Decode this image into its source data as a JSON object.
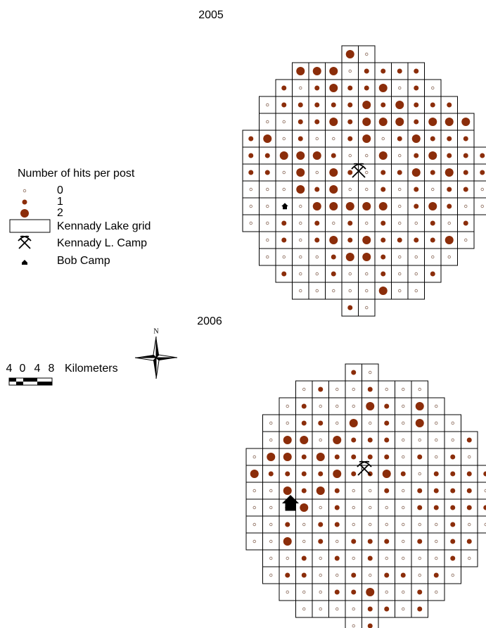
{
  "maps": [
    {
      "title": "2005",
      "rows": [
        [
          2,
          0
        ],
        [
          2,
          2,
          2,
          0,
          1,
          1,
          1,
          1
        ],
        [
          1,
          0,
          1,
          2,
          1,
          1,
          2,
          0,
          1,
          0
        ],
        [
          0,
          1,
          1,
          1,
          1,
          1,
          2,
          1,
          2,
          1,
          1,
          1
        ],
        [
          0,
          0,
          1,
          1,
          2,
          1,
          2,
          2,
          2,
          1,
          2,
          2,
          2
        ],
        [
          1,
          2,
          0,
          1,
          0,
          0,
          1,
          2,
          0,
          1,
          2,
          1,
          1,
          1
        ],
        [
          1,
          1,
          2,
          2,
          2,
          1,
          0,
          0,
          2,
          0,
          1,
          2,
          1,
          1,
          1
        ],
        [
          1,
          1,
          0,
          2,
          0,
          2,
          1,
          0,
          1,
          1,
          2,
          1,
          2,
          1,
          1
        ],
        [
          0,
          0,
          0,
          2,
          1,
          2,
          0,
          0,
          1,
          0,
          1,
          0,
          1,
          1,
          0
        ],
        [
          0,
          0,
          0,
          0,
          2,
          2,
          2,
          2,
          2,
          0,
          1,
          2,
          1,
          0,
          0
        ],
        [
          0,
          0,
          1,
          0,
          1,
          0,
          1,
          0,
          1,
          0,
          0,
          1,
          0,
          1
        ],
        [
          0,
          1,
          0,
          1,
          2,
          1,
          2,
          1,
          1,
          1,
          1,
          2,
          0
        ],
        [
          0,
          0,
          0,
          0,
          1,
          2,
          2,
          1,
          0,
          0,
          0,
          0
        ],
        [
          1,
          0,
          0,
          1,
          0,
          0,
          1,
          0,
          0,
          1
        ],
        [
          0,
          0,
          0,
          0,
          0,
          2,
          0,
          0
        ],
        [
          1,
          0
        ]
      ]
    },
    {
      "title": "2006",
      "rows": [
        [
          1,
          0
        ],
        [
          0,
          1,
          0,
          0,
          1,
          0,
          0,
          0
        ],
        [
          0,
          1,
          0,
          0,
          0,
          2,
          1,
          0,
          2,
          0
        ],
        [
          0,
          0,
          1,
          1,
          0,
          2,
          0,
          1,
          0,
          2,
          0,
          0
        ],
        [
          0,
          2,
          2,
          0,
          2,
          1,
          1,
          1,
          0,
          0,
          0,
          0,
          1
        ],
        [
          0,
          2,
          2,
          1,
          2,
          1,
          1,
          1,
          1,
          0,
          1,
          0,
          1,
          0
        ],
        [
          2,
          1,
          1,
          1,
          1,
          2,
          1,
          1,
          2,
          1,
          0,
          1,
          1,
          1,
          1
        ],
        [
          0,
          0,
          2,
          1,
          2,
          1,
          0,
          0,
          1,
          0,
          1,
          1,
          1,
          1,
          0
        ],
        [
          0,
          0,
          1,
          2,
          0,
          1,
          0,
          0,
          0,
          0,
          1,
          1,
          1,
          1,
          1
        ],
        [
          0,
          0,
          1,
          0,
          1,
          1,
          0,
          0,
          0,
          0,
          0,
          0,
          1,
          0,
          0
        ],
        [
          0,
          0,
          2,
          0,
          1,
          0,
          1,
          1,
          1,
          0,
          1,
          0,
          1,
          1
        ],
        [
          0,
          0,
          1,
          0,
          1,
          0,
          1,
          0,
          0,
          0,
          0,
          1,
          0
        ],
        [
          0,
          1,
          1,
          0,
          0,
          1,
          0,
          1,
          1,
          0,
          1,
          0
        ],
        [
          0,
          0,
          0,
          1,
          1,
          2,
          0,
          0,
          1,
          0
        ],
        [
          0,
          0,
          0,
          0,
          1,
          1,
          0,
          1
        ],
        [
          0,
          1
        ]
      ]
    }
  ],
  "legend": {
    "title": "Number of hits per post",
    "levels": [
      0,
      1,
      2
    ],
    "grid": "Kennady Lake grid",
    "camp": "Kennady L. Camp",
    "bob": "Bob Camp"
  },
  "scale": {
    "labels": [
      "4",
      "0",
      "4",
      "8"
    ],
    "unit": "Kilometers"
  },
  "north": "N"
}
